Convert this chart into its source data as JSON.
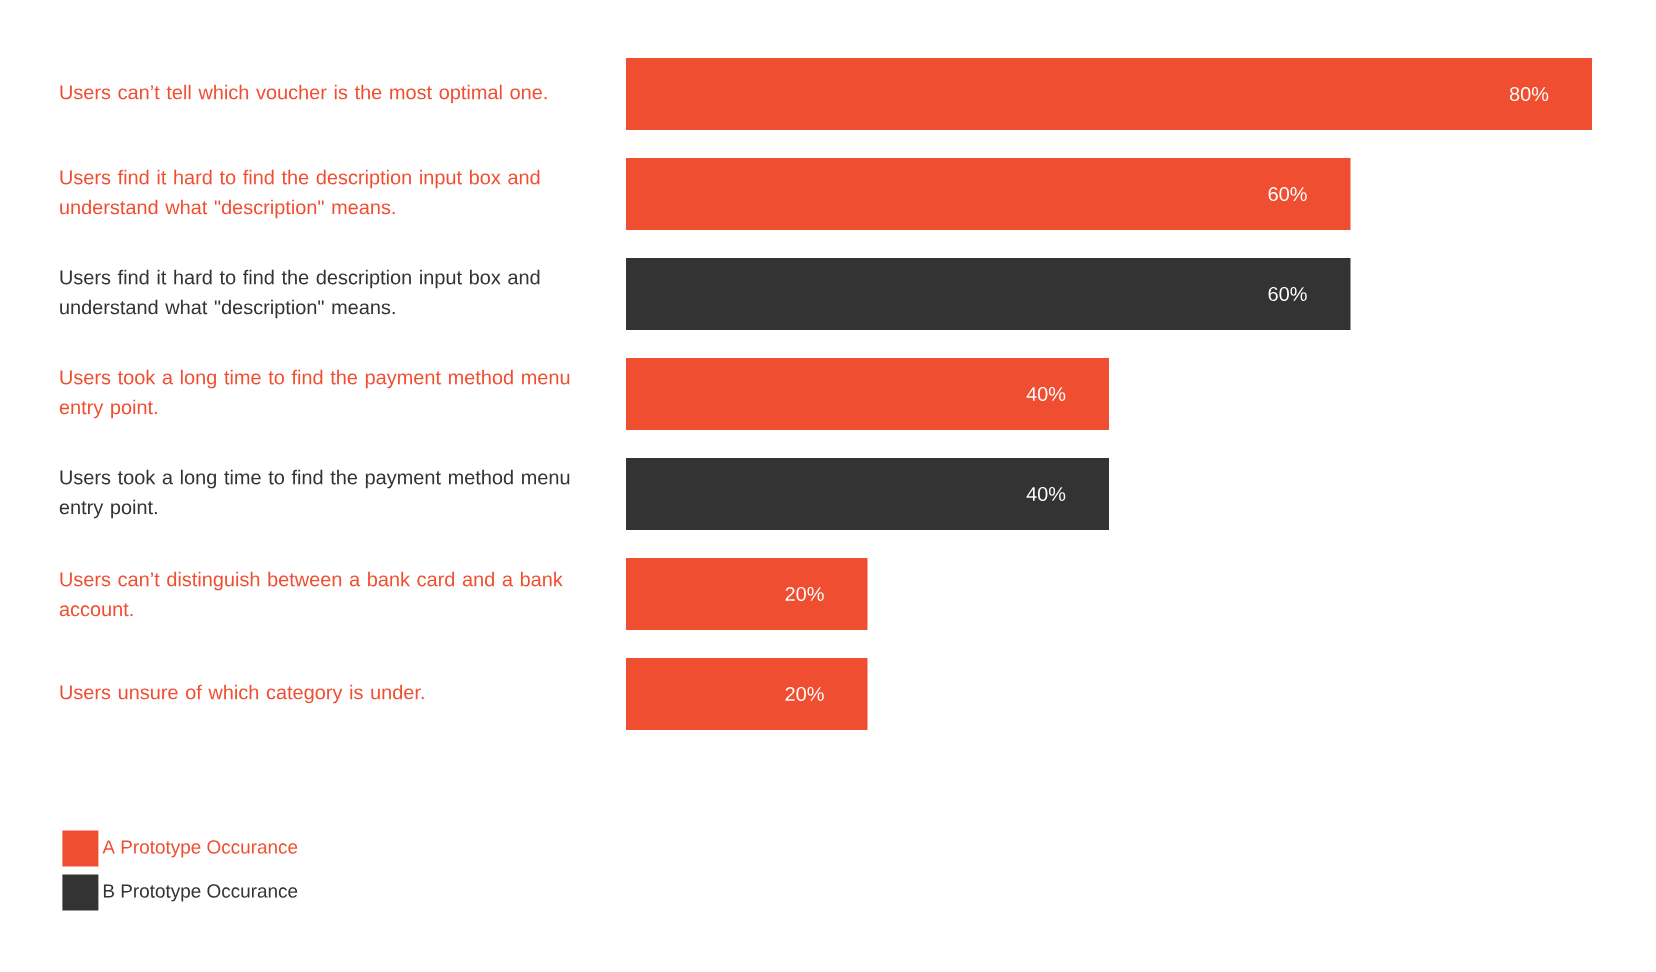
{
  "chart_data": {
    "type": "bar",
    "orientation": "horizontal",
    "categories": [
      "Users can’t tell which voucher is the most optimal one.",
      "Users find it hard to find the description input box and understand what \"description\" means.",
      "Users find it hard to find the description input box and understand what \"description\" means.",
      "Users took a long time to find the payment method menu entry point.",
      "Users took a long time to find the payment method menu entry point.",
      "Users can’t distinguish between a bank card and a bank account.",
      "Users unsure of which category is under."
    ],
    "xlim": [
      0,
      80
    ],
    "series": [
      {
        "name": "A Prototype Occurance",
        "color": "#f04e31",
        "values": [
          80,
          60,
          null,
          40,
          null,
          20,
          20
        ],
        "value_labels": [
          "80%",
          "60%",
          null,
          "40%",
          null,
          "20%",
          "20%"
        ]
      },
      {
        "name": "B Prototype Occurance",
        "color": "#333333",
        "values": [
          null,
          null,
          60,
          null,
          40,
          null,
          null
        ],
        "value_labels": [
          null,
          null,
          "60%",
          null,
          "40%",
          null,
          null
        ]
      }
    ],
    "legend": "bottom left"
  }
}
